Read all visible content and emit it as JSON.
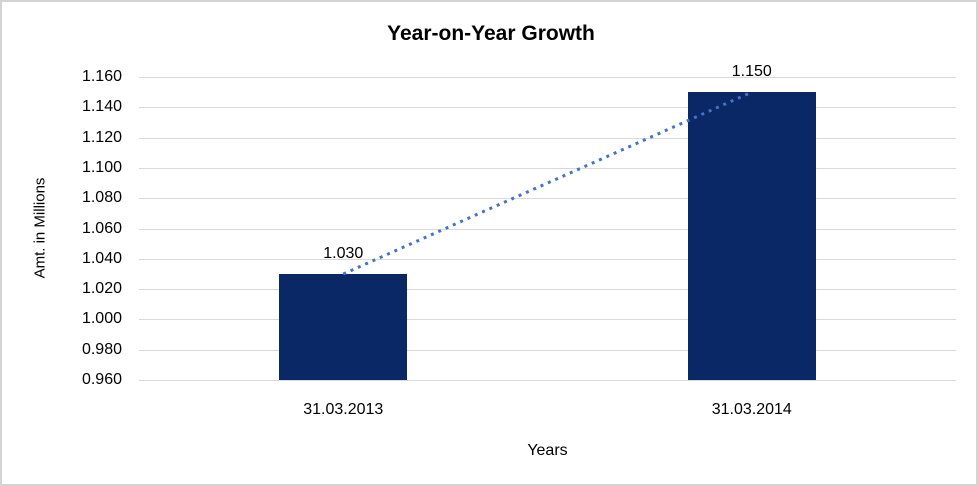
{
  "chart_data": {
    "type": "bar",
    "title": "Year-on-Year Growth",
    "xlabel": "Years",
    "ylabel": "Amt. in Millions",
    "categories": [
      "31.03.2013",
      "31.03.2014"
    ],
    "values": [
      1.03,
      1.15
    ],
    "data_labels": [
      "1.030",
      "1.150"
    ],
    "y_ticks": [
      "1.160",
      "1.140",
      "1.120",
      "1.100",
      "1.080",
      "1.060",
      "1.040",
      "1.020",
      "1.000",
      "0.980",
      "0.960"
    ],
    "ylim": [
      0.96,
      1.16
    ],
    "y_tick_step": 0.02,
    "grid": true,
    "legend": false,
    "trendline": {
      "style": "dotted",
      "color": "#4472c4",
      "from_value": 1.03,
      "to_value": 1.15
    },
    "colors": {
      "bar": "#0a2766",
      "gridline": "#d9d9d9",
      "text": "#000000",
      "frame_border": "#d4d4d4",
      "background": "#ffffff"
    }
  }
}
